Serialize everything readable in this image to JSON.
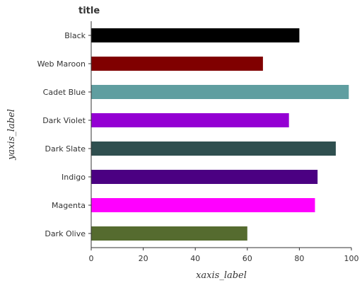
{
  "chart_data": {
    "type": "bar",
    "orientation": "horizontal",
    "title": "title",
    "xlabel": "xaxis_label",
    "ylabel": "yaxis_label",
    "xlim": [
      0,
      100
    ],
    "xticks": [
      0,
      20,
      40,
      60,
      80,
      100
    ],
    "grid": false,
    "categories": [
      "Dark Olive",
      "Magenta",
      "Indigo",
      "Dark Slate",
      "Dark Violet",
      "Cadet Blue",
      "Web Maroon",
      "Black"
    ],
    "values": [
      60,
      86,
      87,
      94,
      76,
      99,
      66,
      80
    ],
    "colors": [
      "#556b2f",
      "#ff00ff",
      "#4b0082",
      "#2f4f4f",
      "#9400d3",
      "#5f9ea0",
      "#800000",
      "#000000"
    ]
  }
}
